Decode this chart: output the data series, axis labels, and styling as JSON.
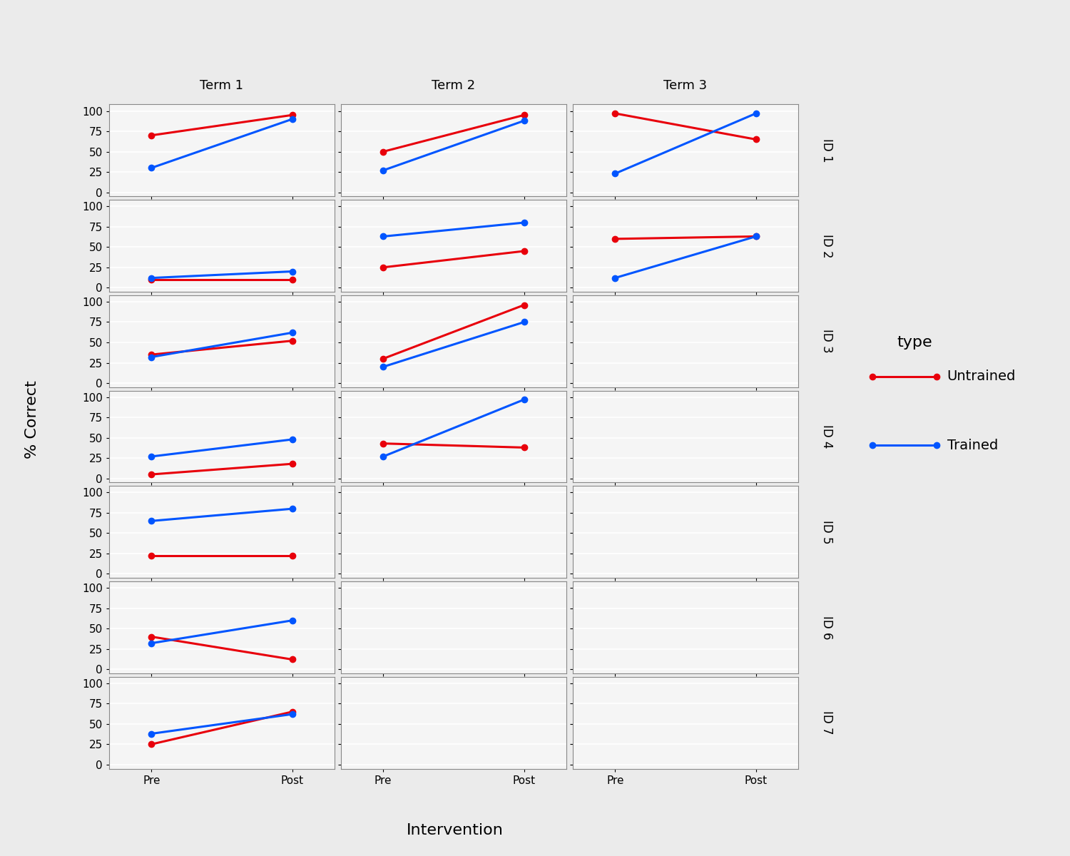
{
  "children": [
    "ID 1",
    "ID 2",
    "ID 3",
    "ID 4",
    "ID 5",
    "ID 6",
    "ID 7"
  ],
  "terms": [
    "Term 1",
    "Term 2",
    "Term 3"
  ],
  "x_labels": [
    "Pre",
    "Post"
  ],
  "ylabel": "% Correct",
  "xlabel": "Intervention",
  "legend_title": "type",
  "legend_labels": [
    "Untrained",
    "Trained"
  ],
  "colors": {
    "Untrained": "#E8000B",
    "Trained": "#0055FF"
  },
  "data": {
    "ID 1": {
      "Term 1": {
        "Untrained": [
          70,
          95
        ],
        "Trained": [
          30,
          90
        ]
      },
      "Term 2": {
        "Untrained": [
          50,
          95
        ],
        "Trained": [
          27,
          88
        ]
      },
      "Term 3": {
        "Untrained": [
          97,
          65
        ],
        "Trained": [
          23,
          97
        ]
      }
    },
    "ID 2": {
      "Term 1": {
        "Untrained": [
          10,
          10
        ],
        "Trained": [
          12,
          20
        ]
      },
      "Term 2": {
        "Untrained": [
          25,
          45
        ],
        "Trained": [
          63,
          80
        ]
      },
      "Term 3": {
        "Untrained": [
          60,
          63
        ],
        "Trained": [
          12,
          63
        ]
      }
    },
    "ID 3": {
      "Term 1": {
        "Untrained": [
          35,
          52
        ],
        "Trained": [
          32,
          62
        ]
      },
      "Term 2": {
        "Untrained": [
          30,
          96
        ],
        "Trained": [
          20,
          75
        ]
      },
      "Term 3": {
        "Untrained": null,
        "Trained": null
      }
    },
    "ID 4": {
      "Term 1": {
        "Untrained": [
          5,
          18
        ],
        "Trained": [
          27,
          48
        ]
      },
      "Term 2": {
        "Untrained": [
          43,
          38
        ],
        "Trained": [
          27,
          97
        ]
      },
      "Term 3": {
        "Untrained": null,
        "Trained": null
      }
    },
    "ID 5": {
      "Term 1": {
        "Untrained": [
          22,
          22
        ],
        "Trained": [
          65,
          80
        ]
      },
      "Term 2": {
        "Untrained": null,
        "Trained": null
      },
      "Term 3": {
        "Untrained": null,
        "Trained": null
      }
    },
    "ID 6": {
      "Term 1": {
        "Untrained": [
          40,
          12
        ],
        "Trained": [
          32,
          60
        ]
      },
      "Term 2": {
        "Untrained": null,
        "Trained": null
      },
      "Term 3": {
        "Untrained": null,
        "Trained": null
      }
    },
    "ID 7": {
      "Term 1": {
        "Untrained": [
          25,
          65
        ],
        "Trained": [
          38,
          62
        ]
      },
      "Term 2": {
        "Untrained": null,
        "Trained": null
      },
      "Term 3": {
        "Untrained": null,
        "Trained": null
      }
    }
  },
  "yticks": [
    0,
    25,
    50,
    75,
    100
  ],
  "ylim": [
    -5,
    108
  ],
  "background_color": "#EBEBEB",
  "panel_background": "#F5F5F5",
  "grid_color": "#FFFFFF",
  "strip_background": "#C8C8C8",
  "title_fontsize": 14,
  "label_fontsize": 14,
  "tick_fontsize": 11,
  "strip_fontsize": 13,
  "id_fontsize": 12
}
